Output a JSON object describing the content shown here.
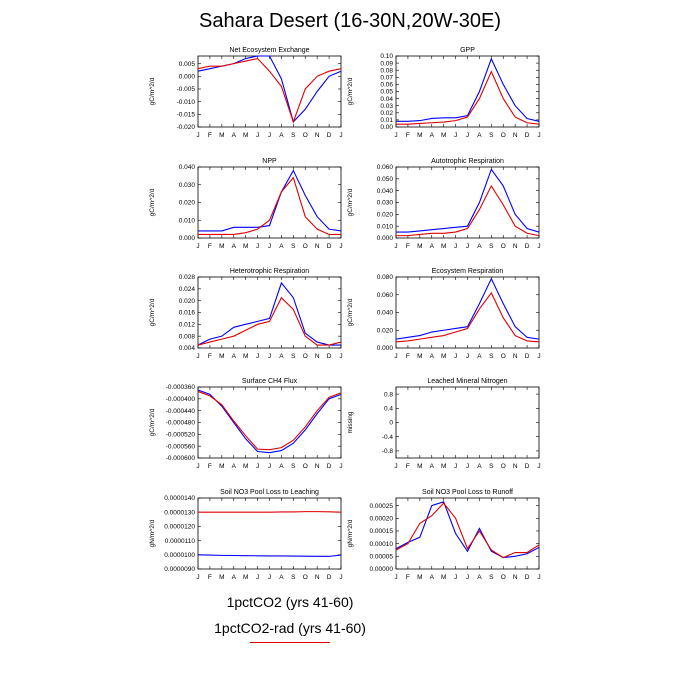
{
  "title": "Sahara Desert (16-30N,20W-30E)",
  "legend": [
    {
      "label": "1pctCO2 (yrs 41-60)",
      "color": "#0000ff"
    },
    {
      "label": "1pctCO2-rad (yrs 41-60)",
      "color": "#e00000"
    }
  ],
  "chart_data": [
    {
      "type": "line",
      "title": "Net Ecosystem Exchange",
      "ylabel": "gC/m^2/d",
      "x": [
        "J",
        "F",
        "M",
        "A",
        "M",
        "J",
        "J",
        "A",
        "S",
        "O",
        "N",
        "D",
        "J"
      ],
      "ylim": [
        -0.02,
        0.008
      ],
      "yticks": [
        -0.02,
        -0.015,
        -0.01,
        -0.005,
        0.0,
        0.005
      ],
      "ytick_labels": [
        "-0.020",
        "-0.015",
        "-0.010",
        "-0.005",
        "0.000",
        "0.005"
      ],
      "series": [
        {
          "color": "#0000ff",
          "values": [
            0.002,
            0.003,
            0.004,
            0.005,
            0.007,
            0.008,
            0.008,
            -0.001,
            -0.018,
            -0.013,
            -0.006,
            0.0,
            0.002
          ]
        },
        {
          "color": "#e00000",
          "values": [
            0.003,
            0.004,
            0.004,
            0.005,
            0.006,
            0.007,
            0.002,
            -0.004,
            -0.018,
            -0.005,
            0.0,
            0.002,
            0.003
          ]
        }
      ]
    },
    {
      "type": "line",
      "title": "GPP",
      "ylabel": "gC/m^2/d",
      "x": [
        "J",
        "F",
        "M",
        "A",
        "M",
        "J",
        "J",
        "A",
        "S",
        "O",
        "N",
        "D",
        "J"
      ],
      "ylim": [
        0,
        0.1
      ],
      "yticks": [
        0,
        0.01,
        0.02,
        0.03,
        0.04,
        0.05,
        0.06,
        0.07,
        0.08,
        0.09,
        0.1
      ],
      "ytick_labels": [
        "0.00",
        "0.01",
        "0.02",
        "0.03",
        "0.04",
        "0.05",
        "0.06",
        "0.07",
        "0.08",
        "0.09",
        "0.10"
      ],
      "series": [
        {
          "color": "#0000ff",
          "values": [
            0.008,
            0.008,
            0.009,
            0.012,
            0.013,
            0.013,
            0.016,
            0.05,
            0.096,
            0.06,
            0.03,
            0.012,
            0.008
          ]
        },
        {
          "color": "#e00000",
          "values": [
            0.004,
            0.004,
            0.005,
            0.006,
            0.007,
            0.009,
            0.014,
            0.04,
            0.078,
            0.04,
            0.014,
            0.006,
            0.004
          ]
        }
      ]
    },
    {
      "type": "line",
      "title": "NPP",
      "ylabel": "gC/m^2/d",
      "x": [
        "J",
        "F",
        "M",
        "A",
        "M",
        "J",
        "J",
        "A",
        "S",
        "O",
        "N",
        "D",
        "J"
      ],
      "ylim": [
        0,
        0.04
      ],
      "yticks": [
        0,
        0.01,
        0.02,
        0.03,
        0.04
      ],
      "ytick_labels": [
        "0.000",
        "0.010",
        "0.020",
        "0.030",
        "0.040"
      ],
      "series": [
        {
          "color": "#0000ff",
          "values": [
            0.004,
            0.004,
            0.004,
            0.006,
            0.006,
            0.006,
            0.007,
            0.026,
            0.038,
            0.024,
            0.012,
            0.005,
            0.004
          ]
        },
        {
          "color": "#e00000",
          "values": [
            0.002,
            0.002,
            0.002,
            0.002,
            0.003,
            0.005,
            0.01,
            0.026,
            0.034,
            0.012,
            0.005,
            0.002,
            0.002
          ]
        }
      ]
    },
    {
      "type": "line",
      "title": "Autotrophic Respiration",
      "ylabel": "gC/m^2/d",
      "x": [
        "J",
        "F",
        "M",
        "A",
        "M",
        "J",
        "J",
        "A",
        "S",
        "O",
        "N",
        "D",
        "J"
      ],
      "ylim": [
        0,
        0.06
      ],
      "yticks": [
        0,
        0.01,
        0.02,
        0.03,
        0.04,
        0.05,
        0.06
      ],
      "ytick_labels": [
        "0.000",
        "0.010",
        "0.020",
        "0.030",
        "0.040",
        "0.050",
        "0.060"
      ],
      "series": [
        {
          "color": "#0000ff",
          "values": [
            0.005,
            0.005,
            0.006,
            0.007,
            0.008,
            0.009,
            0.01,
            0.03,
            0.058,
            0.044,
            0.02,
            0.008,
            0.005
          ]
        },
        {
          "color": "#e00000",
          "values": [
            0.002,
            0.002,
            0.003,
            0.004,
            0.004,
            0.005,
            0.008,
            0.024,
            0.044,
            0.028,
            0.01,
            0.004,
            0.002
          ]
        }
      ]
    },
    {
      "type": "line",
      "title": "Heterotrophic Respiration",
      "ylabel": "gC/m^2/d",
      "x": [
        "J",
        "F",
        "M",
        "A",
        "M",
        "J",
        "J",
        "A",
        "S",
        "O",
        "N",
        "D",
        "J"
      ],
      "ylim": [
        0.004,
        0.028
      ],
      "yticks": [
        0.004,
        0.008,
        0.012,
        0.016,
        0.02,
        0.024,
        0.028
      ],
      "ytick_labels": [
        "0.004",
        "0.008",
        "0.012",
        "0.016",
        "0.020",
        "0.024",
        "0.028"
      ],
      "series": [
        {
          "color": "#0000ff",
          "values": [
            0.005,
            0.007,
            0.008,
            0.011,
            0.012,
            0.013,
            0.014,
            0.026,
            0.021,
            0.009,
            0.006,
            0.005,
            0.005
          ]
        },
        {
          "color": "#e00000",
          "values": [
            0.005,
            0.006,
            0.007,
            0.008,
            0.01,
            0.012,
            0.013,
            0.021,
            0.017,
            0.008,
            0.005,
            0.005,
            0.006
          ]
        }
      ]
    },
    {
      "type": "line",
      "title": "Ecosystem Respiration",
      "ylabel": "gC/m^2/d",
      "x": [
        "J",
        "F",
        "M",
        "A",
        "M",
        "J",
        "J",
        "A",
        "S",
        "O",
        "N",
        "D",
        "J"
      ],
      "ylim": [
        0,
        0.08
      ],
      "yticks": [
        0,
        0.02,
        0.04,
        0.06,
        0.08
      ],
      "ytick_labels": [
        "0.000",
        "0.020",
        "0.040",
        "0.060",
        "0.080"
      ],
      "series": [
        {
          "color": "#0000ff",
          "values": [
            0.01,
            0.012,
            0.014,
            0.018,
            0.02,
            0.022,
            0.024,
            0.05,
            0.078,
            0.05,
            0.024,
            0.012,
            0.01
          ]
        },
        {
          "color": "#e00000",
          "values": [
            0.007,
            0.008,
            0.01,
            0.012,
            0.014,
            0.018,
            0.022,
            0.044,
            0.062,
            0.034,
            0.014,
            0.008,
            0.007
          ]
        }
      ]
    },
    {
      "type": "line",
      "title": "Surface CH4 Flux",
      "ylabel": "gC/m^2/d",
      "x": [
        "J",
        "F",
        "M",
        "A",
        "M",
        "J",
        "J",
        "A",
        "S",
        "O",
        "N",
        "D",
        "J"
      ],
      "ylim": [
        -0.0006,
        -0.00036
      ],
      "yticks": [
        -0.0006,
        -0.00056,
        -0.00052,
        -0.00048,
        -0.00044,
        -0.0004,
        -0.00036
      ],
      "ytick_labels": [
        "-0.000600",
        "-0.000560",
        "-0.000520",
        "-0.000480",
        "-0.000440",
        "-0.000400",
        "-0.000360"
      ],
      "series": [
        {
          "color": "#0000ff",
          "values": [
            -0.00037,
            -0.000385,
            -0.000425,
            -0.00048,
            -0.000535,
            -0.000578,
            -0.000582,
            -0.000575,
            -0.00055,
            -0.000505,
            -0.00045,
            -0.0004,
            -0.000385
          ]
        },
        {
          "color": "#e00000",
          "values": [
            -0.000375,
            -0.00039,
            -0.00042,
            -0.000475,
            -0.000525,
            -0.00057,
            -0.000572,
            -0.000565,
            -0.00054,
            -0.000495,
            -0.00044,
            -0.000395,
            -0.00038
          ]
        }
      ]
    },
    {
      "type": "line",
      "title": "Leached Mineral Nitrogen",
      "ylabel": "missing",
      "x": [
        "J",
        "F",
        "M",
        "A",
        "M",
        "J",
        "J",
        "A",
        "S",
        "O",
        "N",
        "D",
        "J"
      ],
      "ylim": [
        -1,
        1
      ],
      "yticks": [
        -0.8,
        -0.4,
        0,
        0.4,
        0.8
      ],
      "ytick_labels": [
        "-0.8",
        "-0.4",
        "0",
        "0.4",
        "0.8"
      ],
      "series": []
    },
    {
      "type": "line",
      "title": "Soil NO3 Pool Loss to Leaching",
      "ylabel": "gN/m^2/d",
      "x": [
        "J",
        "F",
        "M",
        "A",
        "M",
        "J",
        "J",
        "A",
        "S",
        "O",
        "N",
        "D",
        "J"
      ],
      "ylim": [
        9e-06,
        1.4e-05
      ],
      "yticks": [
        9e-06,
        1e-05,
        1.1e-05,
        1.2e-05,
        1.3e-05,
        1.4e-05
      ],
      "ytick_labels": [
        "0.0000090",
        "0.0000100",
        "0.0000110",
        "0.0000120",
        "0.0000130",
        "0.0000140"
      ],
      "series": [
        {
          "color": "#0000ff",
          "values": [
            1e-05,
            9.98e-06,
            9.96e-06,
            9.95e-06,
            9.94e-06,
            9.93e-06,
            9.92e-06,
            9.92e-06,
            9.91e-06,
            9.9e-06,
            9.89e-06,
            9.89e-06,
            9.98e-06
          ]
        },
        {
          "color": "#e00000",
          "values": [
            1.3e-05,
            1.3e-05,
            1.3e-05,
            1.3e-05,
            1.3e-05,
            1.3e-05,
            1.3e-05,
            1.302e-05,
            1.302e-05,
            1.304e-05,
            1.304e-05,
            1.303e-05,
            1.3e-05
          ]
        }
      ]
    },
    {
      "type": "line",
      "title": "Soil NO3 Pool Loss to Runoff",
      "ylabel": "gN/m^2/d",
      "x": [
        "J",
        "F",
        "M",
        "A",
        "M",
        "J",
        "J",
        "A",
        "S",
        "O",
        "N",
        "D",
        "J"
      ],
      "ylim": [
        0,
        0.00028
      ],
      "yticks": [
        0,
        5e-05,
        0.0001,
        0.00015,
        0.0002,
        0.00025
      ],
      "ytick_labels": [
        "0.00000",
        "0.00005",
        "0.00010",
        "0.00015",
        "0.00020",
        "0.00025"
      ],
      "series": [
        {
          "color": "#0000ff",
          "values": [
            8e-05,
            0.000105,
            0.000125,
            0.00025,
            0.000265,
            0.00014,
            7e-05,
            0.00016,
            7e-05,
            4.5e-05,
            5e-05,
            6e-05,
            8.5e-05
          ]
        },
        {
          "color": "#e00000",
          "values": [
            7.5e-05,
            0.0001,
            0.00018,
            0.00021,
            0.00026,
            0.0002,
            8e-05,
            0.00015,
            7.5e-05,
            4.5e-05,
            6.5e-05,
            6.5e-05,
            9.5e-05
          ]
        }
      ]
    }
  ]
}
